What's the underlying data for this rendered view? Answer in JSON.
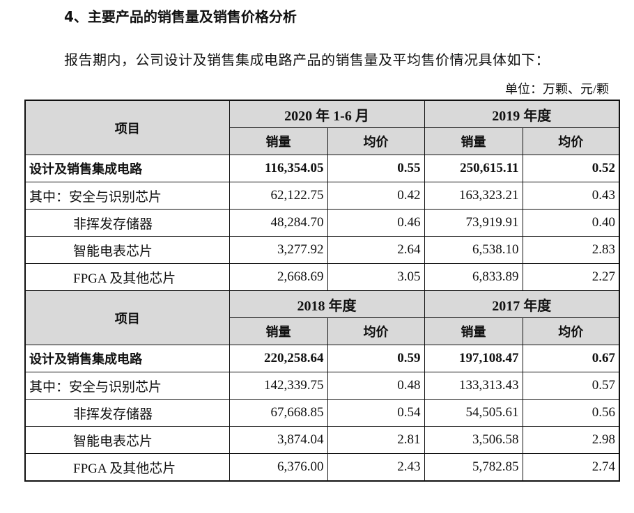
{
  "section_title": "4、主要产品的销售量及销售价格分析",
  "intro": "报告期内，公司设计及销售集成电路产品的销售量及平均售价情况具体如下：",
  "unit": "单位：万颗、元/颗",
  "table": {
    "item_header": "项目",
    "qty_header": "销量",
    "price_header": "均价",
    "blocks": [
      {
        "periods": [
          "2020 年 1-6 月",
          "2019 年度"
        ],
        "rows": [
          {
            "label": "设计及销售集成电路",
            "values": [
              "116,354.05",
              "0.55",
              "250,615.11",
              "0.52"
            ]
          },
          {
            "label": "其中：安全与识别芯片",
            "values": [
              "62,122.75",
              "0.42",
              "163,323.21",
              "0.43"
            ]
          },
          {
            "label": "非挥发存储器",
            "values": [
              "48,284.70",
              "0.46",
              "73,919.91",
              "0.40"
            ]
          },
          {
            "label": "智能电表芯片",
            "values": [
              "3,277.92",
              "2.64",
              "6,538.10",
              "2.83"
            ]
          },
          {
            "label": "FPGA 及其他芯片",
            "values": [
              "2,668.69",
              "3.05",
              "6,833.89",
              "2.27"
            ]
          }
        ]
      },
      {
        "periods": [
          "2018 年度",
          "2017 年度"
        ],
        "rows": [
          {
            "label": "设计及销售集成电路",
            "values": [
              "220,258.64",
              "0.59",
              "197,108.47",
              "0.67"
            ]
          },
          {
            "label": "其中：安全与识别芯片",
            "values": [
              "142,339.75",
              "0.48",
              "133,313.43",
              "0.57"
            ]
          },
          {
            "label": "非挥发存储器",
            "values": [
              "67,668.85",
              "0.54",
              "54,505.61",
              "0.56"
            ]
          },
          {
            "label": "智能电表芯片",
            "values": [
              "3,874.04",
              "2.81",
              "3,506.58",
              "2.98"
            ]
          },
          {
            "label": "FPGA 及其他芯片",
            "values": [
              "6,376.00",
              "2.43",
              "5,782.85",
              "2.74"
            ]
          }
        ]
      }
    ]
  }
}
